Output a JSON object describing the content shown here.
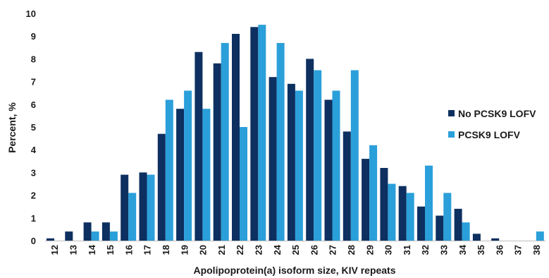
{
  "chart_data": {
    "type": "bar",
    "xlabel": "Apolipoprotein(a) isoform size, KIV repeats",
    "ylabel": "Percent, %",
    "ylim": [
      0,
      10
    ],
    "yticks": [
      "0",
      "1",
      "2",
      "3",
      "4",
      "5",
      "6",
      "7",
      "8",
      "9",
      "10"
    ],
    "grid": false,
    "legend_position": "right",
    "categories": [
      "12",
      "13",
      "14",
      "15",
      "16",
      "17",
      "18",
      "19",
      "20",
      "21",
      "22",
      "23",
      "24",
      "25",
      "26",
      "27",
      "28",
      "29",
      "30",
      "31",
      "32",
      "33",
      "34",
      "35",
      "36",
      "37",
      "38"
    ],
    "series": [
      {
        "name": "No PCSK9 LOFV",
        "color": "#0d3060",
        "values": [
          0.1,
          0.4,
          0.8,
          0.8,
          2.9,
          3.0,
          4.7,
          5.8,
          8.3,
          7.8,
          9.1,
          9.4,
          7.2,
          6.9,
          8.0,
          6.2,
          4.8,
          3.6,
          3.2,
          2.4,
          1.5,
          1.1,
          1.4,
          0.3,
          0.1,
          0,
          0
        ]
      },
      {
        "name": "PCSK9 LOFV",
        "color": "#2b9fd9",
        "values": [
          0,
          0,
          0.4,
          0.4,
          2.1,
          2.9,
          6.2,
          6.6,
          5.8,
          8.7,
          5.0,
          9.5,
          8.7,
          6.6,
          7.5,
          6.6,
          7.5,
          4.2,
          2.5,
          2.1,
          3.3,
          2.1,
          0.8,
          0,
          0,
          0,
          0.4
        ]
      }
    ]
  }
}
